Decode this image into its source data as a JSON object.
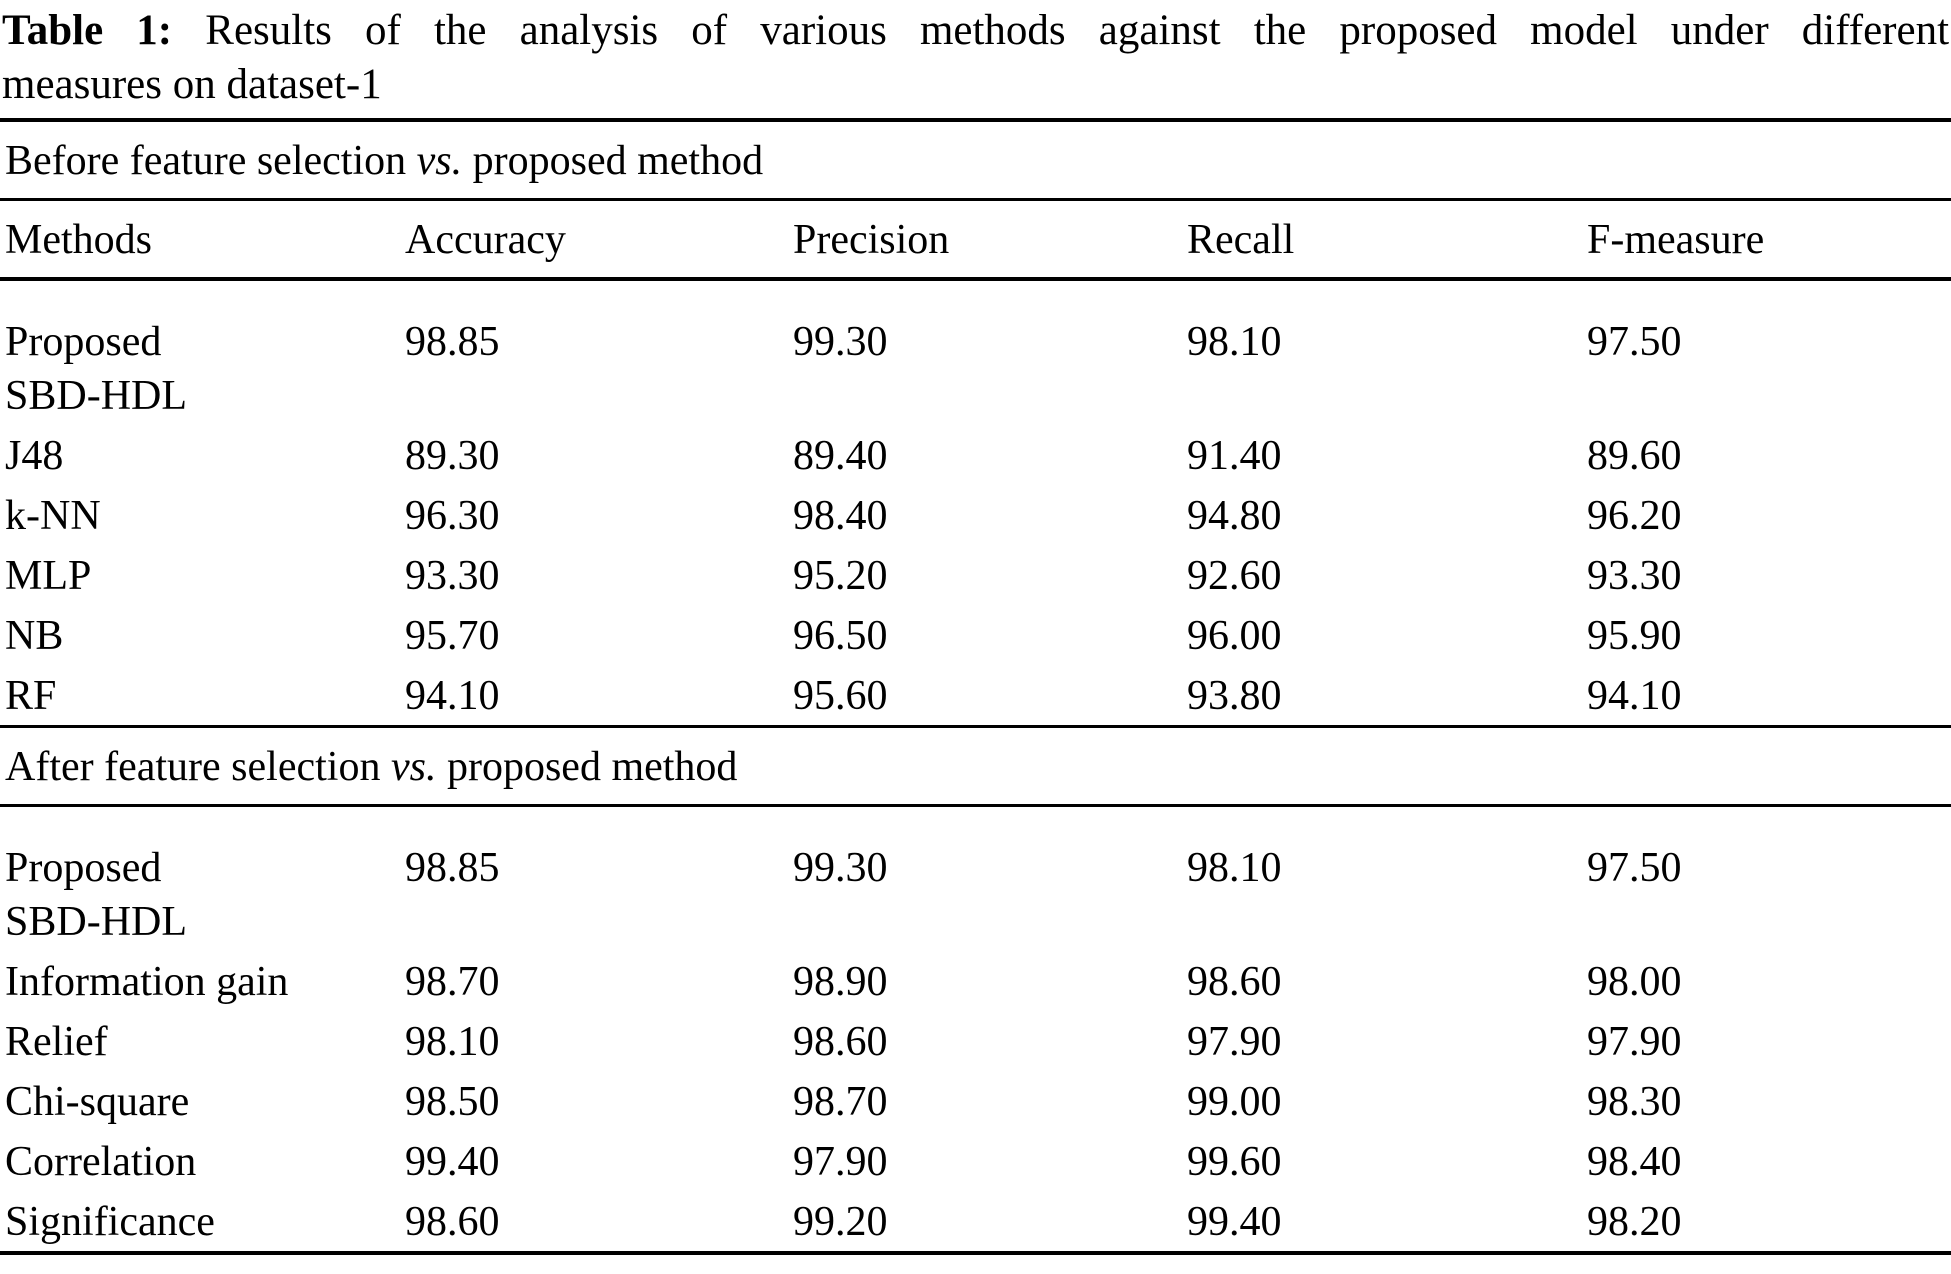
{
  "title": {
    "label": "Table 1:",
    "line1_rest": "Results of the analysis of various methods against the proposed model under different",
    "line2": "measures on dataset-1"
  },
  "table": {
    "columns": [
      "Methods",
      "Accuracy",
      "Precision",
      "Recall",
      "F-measure"
    ],
    "sections": [
      {
        "heading": {
          "prefix": "Before feature selection",
          "vs": "vs.",
          "suffix": "proposed method"
        },
        "rows": [
          {
            "method": "Proposed\nSBD-HDL",
            "values": [
              "98.85",
              "99.30",
              "98.10",
              "97.50"
            ]
          },
          {
            "method": "J48",
            "values": [
              "89.30",
              "89.40",
              "91.40",
              "89.60"
            ]
          },
          {
            "method": "k-NN",
            "values": [
              "96.30",
              "98.40",
              "94.80",
              "96.20"
            ]
          },
          {
            "method": "MLP",
            "values": [
              "93.30",
              "95.20",
              "92.60",
              "93.30"
            ]
          },
          {
            "method": "NB",
            "values": [
              "95.70",
              "96.50",
              "96.00",
              "95.90"
            ]
          },
          {
            "method": "RF",
            "values": [
              "94.10",
              "95.60",
              "93.80",
              "94.10"
            ]
          }
        ]
      },
      {
        "heading": {
          "prefix": "After feature selection",
          "vs": "vs.",
          "suffix": "proposed method"
        },
        "rows": [
          {
            "method": "Proposed\nSBD-HDL",
            "values": [
              "98.85",
              "99.30",
              "98.10",
              "97.50"
            ]
          },
          {
            "method": "Information gain",
            "values": [
              "98.70",
              "98.90",
              "98.60",
              "98.00"
            ]
          },
          {
            "method": "Relief",
            "values": [
              "98.10",
              "98.60",
              "97.90",
              "97.90"
            ]
          },
          {
            "method": "Chi-square",
            "values": [
              "98.50",
              "98.70",
              "99.00",
              "98.30"
            ]
          },
          {
            "method": "Correlation",
            "values": [
              "99.40",
              "97.90",
              "99.60",
              "98.40"
            ]
          },
          {
            "method": "Significance",
            "values": [
              "98.60",
              "99.20",
              "99.40",
              "98.20"
            ]
          }
        ]
      }
    ]
  },
  "colors": {
    "text": "#000000",
    "background": "#ffffff",
    "rule": "#000000"
  }
}
